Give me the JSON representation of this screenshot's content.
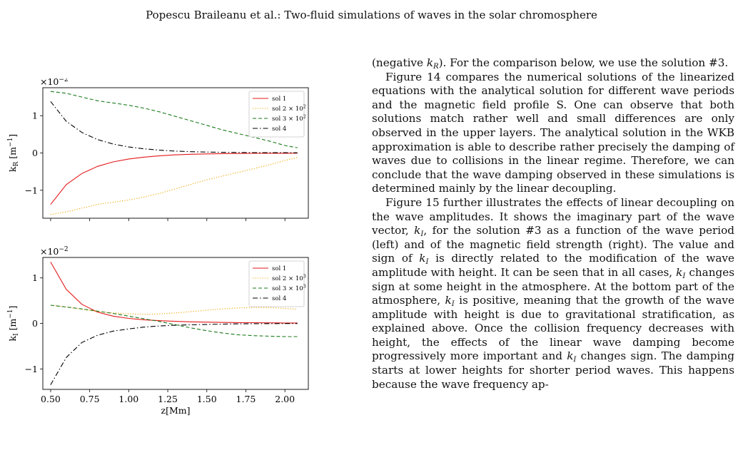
{
  "running_head": "Popescu Braileanu et al.: Two-fluid simulations of waves in the solar chromosphere",
  "body": {
    "p0a": "(negative ",
    "kR": "k",
    "kR_sub": "R",
    "p0b": "). For the comparison below, we use the solution #3.",
    "p1": "Figure 14 compares the numerical solutions of the linearized equations with the analytical solution for different wave periods and the magnetic field profile S. One can observe that both solutions match rather well and small differences are only observed in the upper layers. The analytical solution in the WKB approximation is able to describe rather precisely the damping of waves due to collisions in the linear regime. Therefore, we can conclude that the wave damping observed in these simulations is determined mainly by the linear decoupling.",
    "p2a": "Figure 15 further illustrates the effects of linear decoupling on the wave amplitudes. It shows the imaginary part of the wave vector, ",
    "kI": "k",
    "kI_sub": "I",
    "p2b": ", for the solution #3 as a function of the wave period (left) and of the magnetic field strength (right). The value and sign of ",
    "p2c": " is directly related to the modification of the wave amplitude with height. It can be seen that in all cases, ",
    "p2d": " changes sign at some height in the atmosphere. At the bottom part of the atmosphere, ",
    "p2e": " is positive, meaning that the growth of the wave amplitude with height is due to gravitational stratification, as explained above. Once the collision frequency decreases with height, the effects of the linear wave damping become progressively more important and ",
    "p2f": " changes sign. The damping starts at lower heights for shorter period waves. This happens because the wave frequency ap-"
  },
  "chart_data": [
    {
      "type": "line",
      "multiplier": "×10",
      "multiplier_exp": "−2",
      "ylabel": "k",
      "ylabel_sub": "R",
      "ylabel_unit": " [m",
      "ylabel_unit_exp": "−1",
      "ylabel_close": "]",
      "xlim": [
        0.45,
        2.15
      ],
      "ylim": [
        -1.75,
        1.75
      ],
      "xticks": [
        0.5,
        0.75,
        1.0,
        1.25,
        1.5,
        1.75,
        2.0
      ],
      "yticks": [
        -1,
        0,
        1
      ],
      "ytick_labels": [
        "−1",
        "0",
        "1"
      ],
      "x": [
        0.5,
        0.6,
        0.7,
        0.8,
        0.9,
        1.0,
        1.1,
        1.2,
        1.3,
        1.4,
        1.5,
        1.6,
        1.7,
        1.8,
        1.9,
        2.0,
        2.08
      ],
      "legend_position": "top-right",
      "series": [
        {
          "name": "sol 1",
          "color": "#e41a1c",
          "dash": "solid",
          "values": [
            -1.38,
            -0.85,
            -0.55,
            -0.36,
            -0.24,
            -0.16,
            -0.11,
            -0.075,
            -0.05,
            -0.035,
            -0.025,
            -0.018,
            -0.013,
            -0.01,
            -0.008,
            -0.007,
            -0.006
          ]
        },
        {
          "name": "sol 2 × 10",
          "name_exp": "2",
          "color": "#f0a500",
          "dash": "dotted",
          "values": [
            -1.65,
            -1.58,
            -1.48,
            -1.38,
            -1.32,
            -1.26,
            -1.18,
            -1.08,
            -0.96,
            -0.84,
            -0.72,
            -0.62,
            -0.52,
            -0.42,
            -0.32,
            -0.2,
            -0.12
          ]
        },
        {
          "name": "sol 3 × 10",
          "name_exp": "2",
          "color": "#1a7a1a",
          "dash": "dashed",
          "values": [
            1.65,
            1.6,
            1.5,
            1.4,
            1.34,
            1.28,
            1.2,
            1.1,
            0.98,
            0.86,
            0.74,
            0.62,
            0.52,
            0.42,
            0.32,
            0.2,
            0.14
          ]
        },
        {
          "name": "sol 4",
          "color": "#000000",
          "dash": "dashdot",
          "values": [
            1.38,
            0.85,
            0.55,
            0.36,
            0.24,
            0.16,
            0.11,
            0.075,
            0.05,
            0.035,
            0.025,
            0.018,
            0.013,
            0.01,
            0.008,
            0.007,
            0.006
          ]
        }
      ]
    },
    {
      "type": "line",
      "multiplier": "×10",
      "multiplier_exp": "−2",
      "ylabel": "k",
      "ylabel_sub": "I",
      "ylabel_unit": " [m",
      "ylabel_unit_exp": "−1",
      "ylabel_close": "]",
      "xlabel": "z[Mm]",
      "xlim": [
        0.45,
        2.15
      ],
      "ylim": [
        -1.45,
        1.45
      ],
      "xticks": [
        0.5,
        0.75,
        1.0,
        1.25,
        1.5,
        1.75,
        2.0
      ],
      "xtick_labels": [
        "0.50",
        "0.75",
        "1.00",
        "1.25",
        "1.50",
        "1.75",
        "2.00"
      ],
      "yticks": [
        -1,
        0,
        1
      ],
      "ytick_labels": [
        "−1",
        "0",
        "1"
      ],
      "x": [
        0.5,
        0.6,
        0.7,
        0.8,
        0.9,
        1.0,
        1.1,
        1.2,
        1.3,
        1.4,
        1.5,
        1.6,
        1.7,
        1.8,
        1.9,
        2.0,
        2.08
      ],
      "legend_position": "top-right",
      "series": [
        {
          "name": "sol 1",
          "color": "#e41a1c",
          "dash": "solid",
          "values": [
            1.35,
            0.75,
            0.42,
            0.25,
            0.16,
            0.11,
            0.08,
            0.06,
            0.045,
            0.035,
            0.028,
            0.022,
            0.018,
            0.015,
            0.012,
            0.01,
            0.01
          ]
        },
        {
          "name": "sol 2 × 10",
          "name_exp": "3",
          "color": "#f0a500",
          "dash": "dotted",
          "values": [
            0.4,
            0.36,
            0.31,
            0.26,
            0.23,
            0.21,
            0.2,
            0.21,
            0.23,
            0.26,
            0.29,
            0.32,
            0.34,
            0.35,
            0.35,
            0.33,
            0.31
          ]
        },
        {
          "name": "sol 3 × 10",
          "name_exp": "3",
          "color": "#1a7a1a",
          "dash": "dashed",
          "values": [
            0.4,
            0.36,
            0.32,
            0.27,
            0.22,
            0.16,
            0.1,
            0.04,
            -0.03,
            -0.1,
            -0.16,
            -0.21,
            -0.25,
            -0.27,
            -0.28,
            -0.29,
            -0.29
          ]
        },
        {
          "name": "sol 4",
          "color": "#000000",
          "dash": "dashdot",
          "values": [
            -1.35,
            -0.75,
            -0.42,
            -0.26,
            -0.17,
            -0.12,
            -0.08,
            -0.055,
            -0.04,
            -0.03,
            -0.022,
            -0.015,
            -0.01,
            -0.006,
            -0.004,
            -0.003,
            -0.003
          ]
        }
      ]
    }
  ]
}
